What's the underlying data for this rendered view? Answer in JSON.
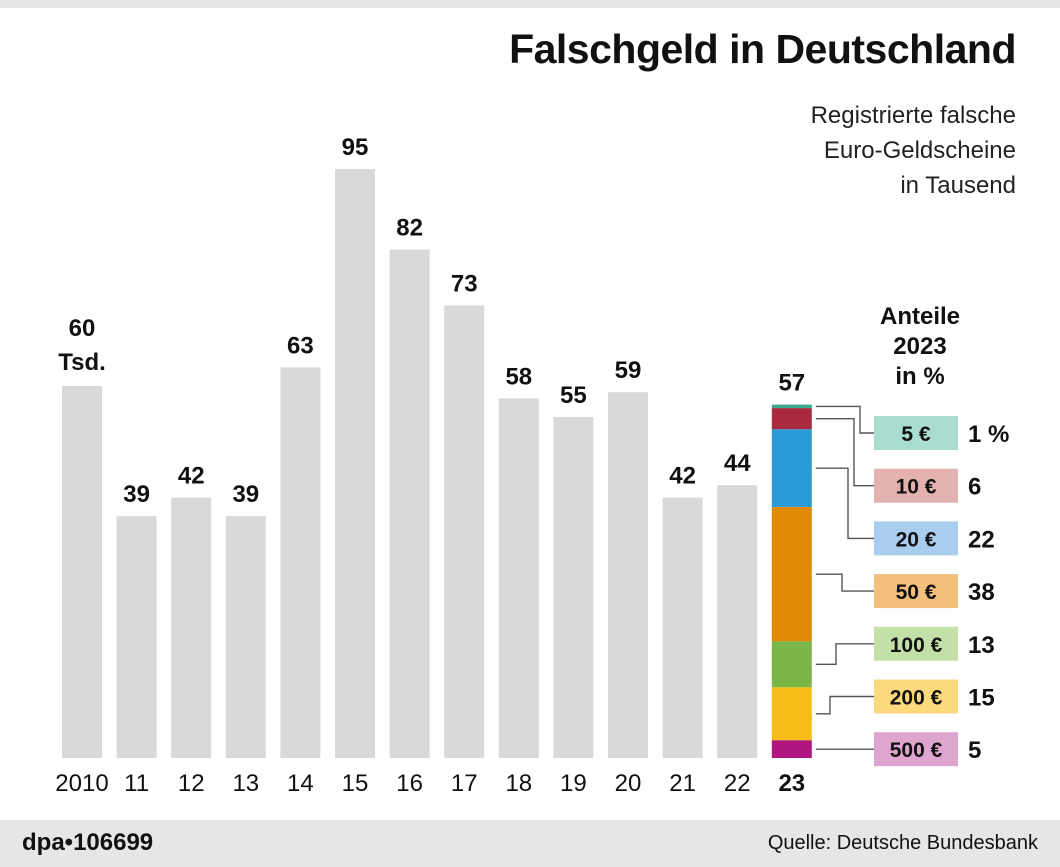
{
  "header": {
    "title": "Falschgeld in Deutschland",
    "subtitle_lines": [
      "Registrierte falsche",
      "Euro-Geldscheine",
      "in Tausend"
    ]
  },
  "footer": {
    "agency_id": "dpa•106699",
    "source": "Quelle: Deutsche Bundesbank"
  },
  "chart_data": [
    {
      "type": "bar",
      "title": "Falschgeld in Deutschland",
      "unit": "Tsd.",
      "categories": [
        "2010",
        "11",
        "12",
        "13",
        "14",
        "15",
        "16",
        "17",
        "18",
        "19",
        "20",
        "21",
        "22",
        "23"
      ],
      "values": [
        60,
        39,
        42,
        39,
        63,
        95,
        82,
        73,
        58,
        55,
        59,
        42,
        44,
        57
      ],
      "value_labels": [
        "60",
        "39",
        "42",
        "39",
        "63",
        "95",
        "82",
        "73",
        "58",
        "55",
        "59",
        "42",
        "44",
        "57"
      ],
      "first_label_unit": "Tsd.",
      "highlight_category": "23",
      "bar_color": "#d9d9d9",
      "ylim": [
        0,
        100
      ],
      "grid": false
    },
    {
      "type": "bar",
      "stacked": true,
      "title_lines": [
        "Anteile",
        "2023",
        "in %"
      ],
      "category": "23",
      "series": [
        {
          "name": "5 €",
          "value": 1,
          "label": "1 %",
          "color": "#3aaa8e",
          "box_color": "#a8ddd0"
        },
        {
          "name": "10 €",
          "value": 6,
          "label": "6",
          "color": "#a82a3c",
          "box_color": "#e3b2b0"
        },
        {
          "name": "20 €",
          "value": 22,
          "label": "22",
          "color": "#2b9bd8",
          "box_color": "#a9cdee"
        },
        {
          "name": "50 €",
          "value": 38,
          "label": "38",
          "color": "#e08a06",
          "box_color": "#f2c07c"
        },
        {
          "name": "100 €",
          "value": 13,
          "label": "13",
          "color": "#7ab648",
          "box_color": "#c4e0a9"
        },
        {
          "name": "200 €",
          "value": 15,
          "label": "15",
          "color": "#f8bc18",
          "box_color": "#fbd97c"
        },
        {
          "name": "500 €",
          "value": 5,
          "label": "5",
          "color": "#b0177e",
          "box_color": "#dea6cf"
        }
      ]
    }
  ]
}
